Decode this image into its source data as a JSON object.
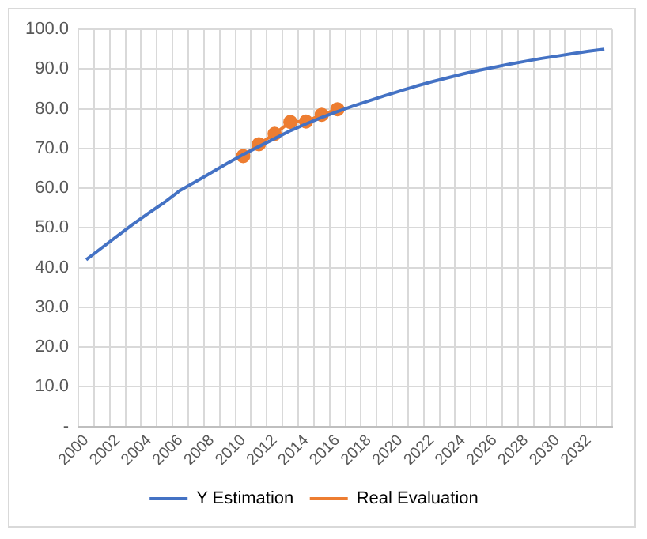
{
  "chart_data": {
    "type": "line",
    "categories": [
      "2000",
      null,
      "2002",
      null,
      "2004",
      null,
      "2006",
      null,
      "2008",
      null,
      "2010",
      null,
      "2012",
      null,
      "2014",
      null,
      "2016",
      null,
      "2018",
      null,
      "2020",
      null,
      "2022",
      null,
      "2024",
      null,
      "2026",
      null,
      "2028",
      null,
      "2030",
      null,
      "2032",
      null
    ],
    "series": [
      {
        "name": "Y Estimation",
        "color": "#4472c4",
        "marker": "none",
        "values": [
          42,
          45,
          48,
          51,
          53.8,
          56.5,
          59.5,
          61.7,
          64,
          66.3,
          68.5,
          70.5,
          72.5,
          74.5,
          76.2,
          77.8,
          79.3,
          80.7,
          82,
          83.3,
          84.5,
          85.7,
          86.8,
          87.8,
          88.8,
          89.7,
          90.5,
          91.3,
          92,
          92.7,
          93.3,
          93.9,
          94.5,
          95
        ]
      },
      {
        "name": "Real Evaluation",
        "color": "#ed7d31",
        "marker": "circle",
        "values": [
          null,
          null,
          null,
          null,
          null,
          null,
          null,
          null,
          null,
          null,
          68.1,
          71.1,
          73.7,
          76.7,
          76.8,
          78.5,
          79.9,
          null,
          null,
          null,
          null,
          null,
          null,
          null,
          null,
          null,
          null,
          null,
          null,
          null,
          null,
          null,
          null,
          null
        ]
      }
    ],
    "ylim": [
      0,
      100
    ],
    "yticks": [
      {
        "value": 0,
        "label": "-"
      },
      {
        "value": 10,
        "label": "10.0"
      },
      {
        "value": 20,
        "label": "20.0"
      },
      {
        "value": 30,
        "label": "30.0"
      },
      {
        "value": 40,
        "label": "40.0"
      },
      {
        "value": 50,
        "label": "50.0"
      },
      {
        "value": 60,
        "label": "60.0"
      },
      {
        "value": 70,
        "label": "70.0"
      },
      {
        "value": 80,
        "label": "80.0"
      },
      {
        "value": 90,
        "label": "90.0"
      },
      {
        "value": 100,
        "label": "100.0"
      }
    ],
    "grid": true,
    "legend": "bottom",
    "line_style": "solid"
  }
}
